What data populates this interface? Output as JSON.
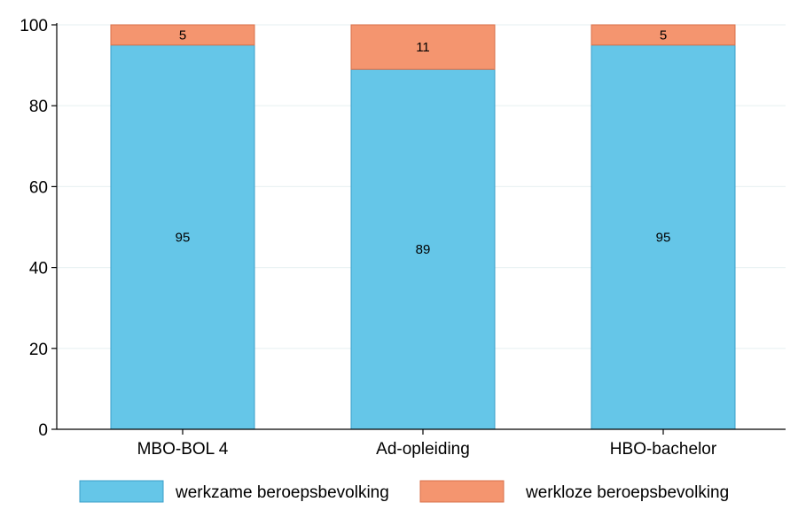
{
  "chart_data": {
    "type": "bar",
    "stacked": true,
    "categories": [
      "MBO-BOL 4",
      "Ad-opleiding",
      "HBO-bachelor"
    ],
    "series": [
      {
        "name": "werkzame beroepsbevolking",
        "values": [
          95,
          89,
          95
        ],
        "labels": [
          "95",
          "89",
          "95"
        ],
        "color": "#65c6e8",
        "edge_color": "#3a9fc9"
      },
      {
        "name": "werkloze beroepsbevolking",
        "values": [
          5,
          11,
          5
        ],
        "labels": [
          "5",
          "11",
          "5"
        ],
        "color": "#f4956f",
        "edge_color": "#d9704a"
      }
    ],
    "yticks": [
      0,
      20,
      40,
      60,
      80,
      100
    ],
    "ytick_labels": [
      "0",
      "20",
      "40",
      "60",
      "80",
      "100"
    ],
    "ylim": [
      0,
      100
    ],
    "grid": true,
    "legend": "bottom",
    "title": "",
    "xlabel": "",
    "ylabel": ""
  }
}
